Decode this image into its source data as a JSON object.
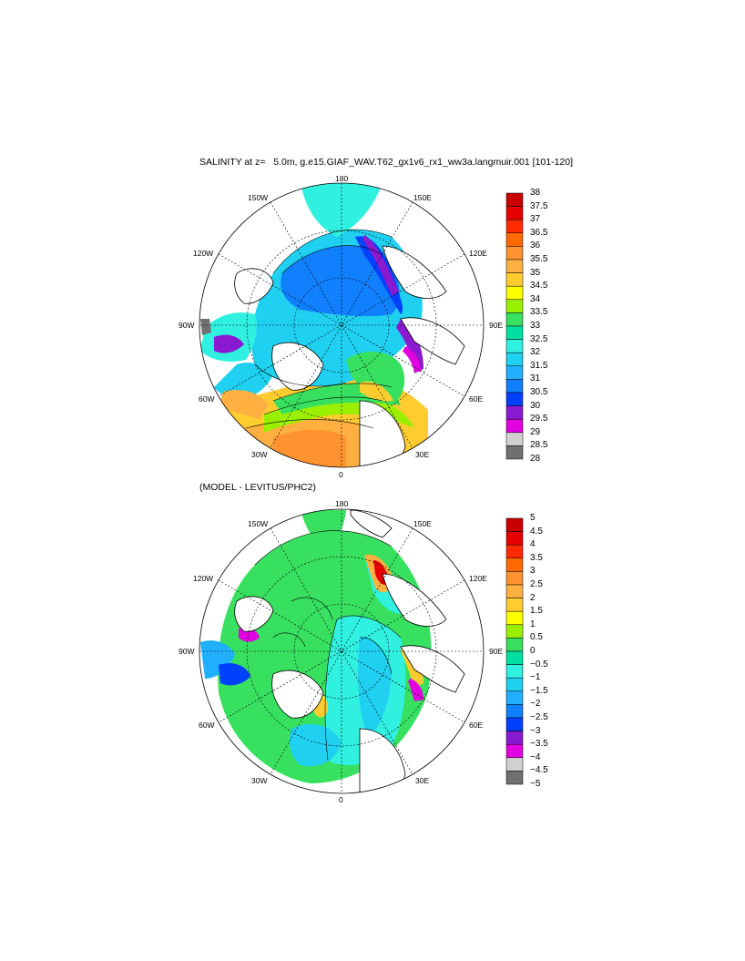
{
  "panels": [
    {
      "title": "SALINITY at z=   5.0m, g.e15.GIAF_WAV.T62_gx1v6_rx1_ww3a.langmuir.001 [101-120]",
      "colorbar": {
        "labels": [
          "38",
          "37.5",
          "37",
          "36.5",
          "36",
          "35.5",
          "35",
          "34.5",
          "34",
          "33.5",
          "33",
          "32.5",
          "32",
          "31.5",
          "31",
          "30.5",
          "30",
          "29.5",
          "29",
          "28.5",
          "28"
        ],
        "colors": [
          "#c80000",
          "#e60000",
          "#ff2a00",
          "#ff6a00",
          "#ff9330",
          "#ffb040",
          "#ffcc30",
          "#ffff00",
          "#9af000",
          "#38e060",
          "#00e0a0",
          "#30f0e0",
          "#20d0f0",
          "#20b0ff",
          "#1080ff",
          "#0040ff",
          "#8a1ad0",
          "#e000e0",
          "#d0d0d0",
          "#707070"
        ]
      }
    },
    {
      "title": "(MODEL - LEVITUS/PHC2)",
      "colorbar": {
        "labels": [
          "5",
          "4.5",
          "4",
          "3.5",
          "3",
          "2.5",
          "2",
          "1.5",
          "1",
          "0.5",
          "0",
          "−0.5",
          "−1",
          "−1.5",
          "−2",
          "−2.5",
          "−3",
          "−3.5",
          "−4",
          "−4.5",
          "−5"
        ],
        "colors": [
          "#c80000",
          "#e60000",
          "#ff2a00",
          "#ff6a00",
          "#ff9330",
          "#ffb040",
          "#ffcc30",
          "#ffff00",
          "#9af000",
          "#38e060",
          "#00e0a0",
          "#30f0e0",
          "#20d0f0",
          "#20b0ff",
          "#1080ff",
          "#0040ff",
          "#8a1ad0",
          "#e000e0",
          "#d0d0d0",
          "#707070"
        ]
      }
    }
  ],
  "meridian_labels": {
    "top": "180",
    "top_right": "150E",
    "right_upper": "120E",
    "right": "90E",
    "right_lower": "60E",
    "bottom_right": "30E",
    "bottom": "0",
    "bottom_left": "30W",
    "left_lower": "60W",
    "left": "90W",
    "left_upper": "120W",
    "top_left": "150W"
  }
}
